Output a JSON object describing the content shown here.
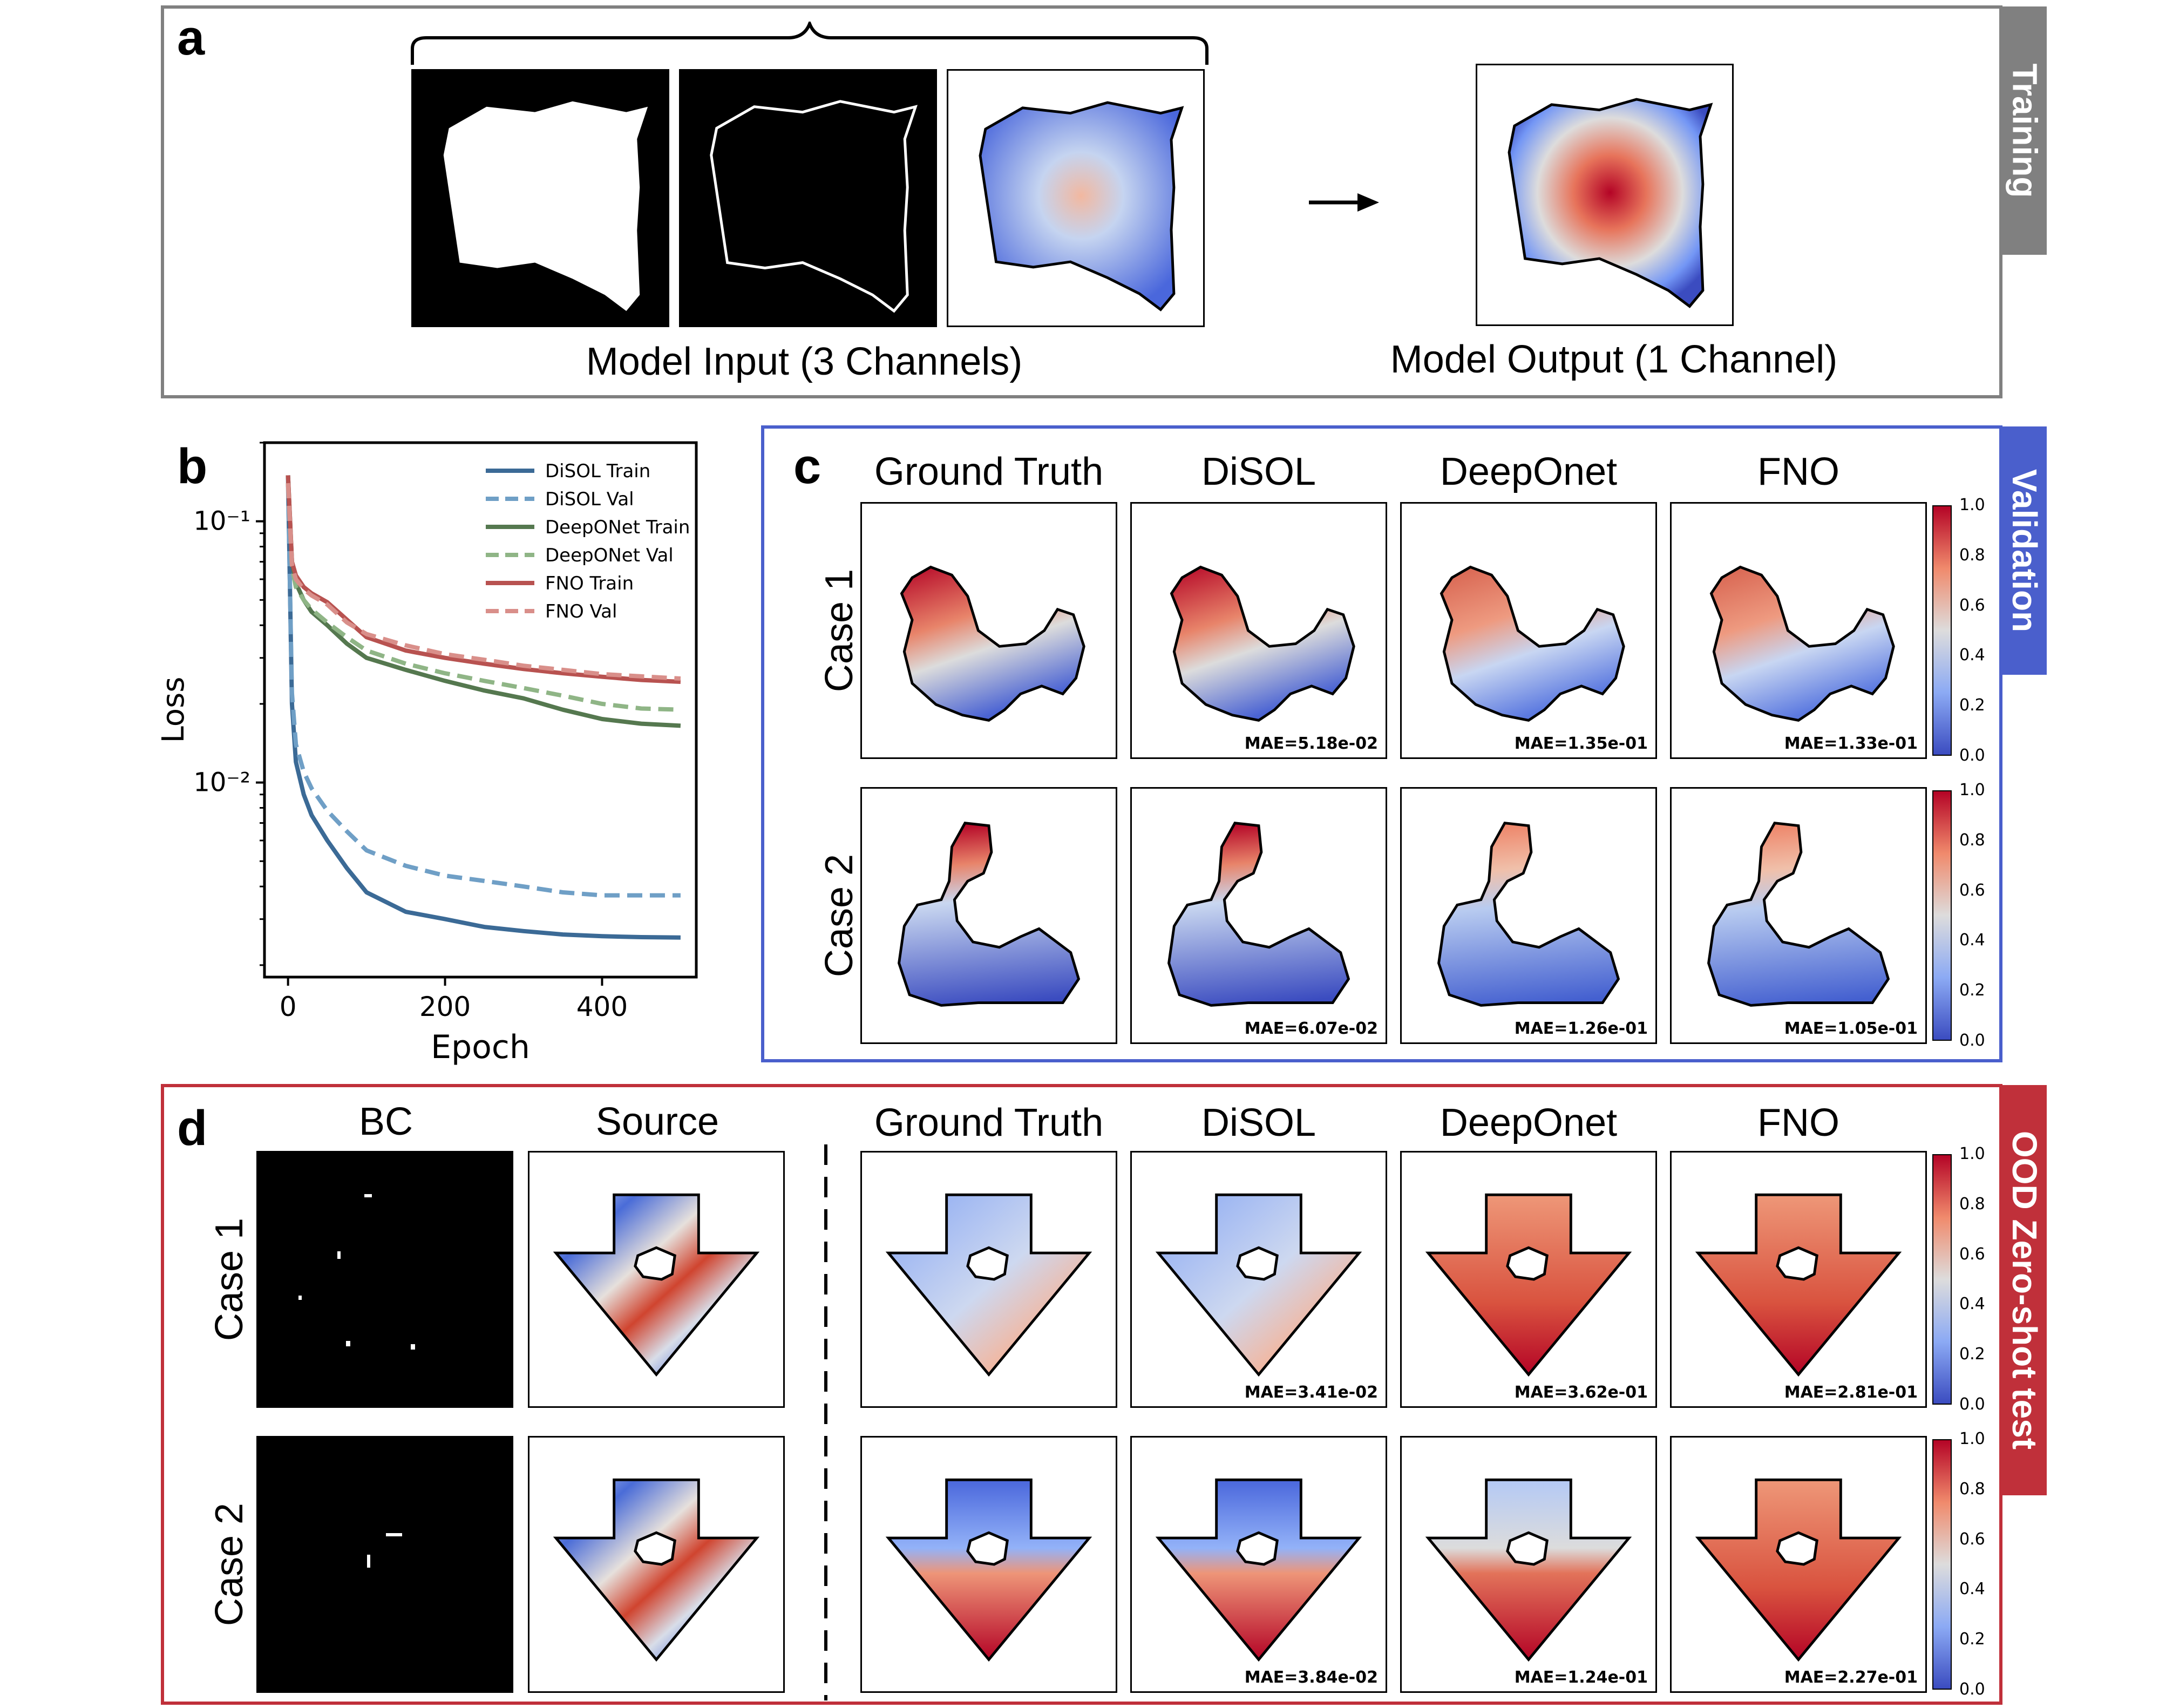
{
  "panels": {
    "a": {
      "letter": "a",
      "tab": "Training",
      "input_caption": "Model Input (3 Channels)",
      "output_caption": "Model Output (1 Channel)"
    },
    "b": {
      "letter": "b"
    },
    "c": {
      "letter": "c",
      "tab": "Validation",
      "columns": [
        "Ground Truth",
        "DiSOL",
        "DeepOnet",
        "FNO"
      ],
      "rows": [
        {
          "label": "Case 1",
          "mae": [
            "",
            "MAE=5.18e-02",
            "MAE=1.35e-01",
            "MAE=1.33e-01"
          ]
        },
        {
          "label": "Case 2",
          "mae": [
            "",
            "MAE=6.07e-02",
            "MAE=1.26e-01",
            "MAE=1.05e-01"
          ]
        }
      ]
    },
    "d": {
      "letter": "d",
      "tab": "OOD Zero-shot test",
      "bc_title": "BC",
      "source_title": "Source",
      "columns": [
        "Ground Truth",
        "DiSOL",
        "DeepOnet",
        "FNO"
      ],
      "rows": [
        {
          "label": "Case 1",
          "mae": [
            "",
            "MAE=3.41e-02",
            "MAE=3.62e-01",
            "MAE=2.81e-01"
          ]
        },
        {
          "label": "Case 2",
          "mae": [
            "",
            "MAE=3.84e-02",
            "MAE=1.24e-01",
            "MAE=2.27e-01"
          ]
        }
      ]
    }
  },
  "colorbar": {
    "ticks": [
      "1.0",
      "0.8",
      "0.6",
      "0.4",
      "0.2",
      "0.0"
    ]
  },
  "colors": {
    "training_tab": "#808080",
    "validation_tab": "#4a5fcc",
    "validation_border": "#4a5fcc",
    "ood_tab": "#c0303a",
    "ood_border": "#c0303a",
    "panel_a_border": "#808080"
  },
  "chart_data": {
    "type": "line",
    "xlabel": "Epoch",
    "ylabel": "Loss",
    "yscale": "log",
    "xlim": [
      -30,
      520
    ],
    "ylim": [
      0.0018,
      0.2
    ],
    "xticks": [
      0,
      200,
      400
    ],
    "xtick_labels": [
      "0",
      "200",
      "400"
    ],
    "yticks": [
      0.1,
      0.01
    ],
    "ytick_labels": [
      "10⁻¹",
      "10⁻²"
    ],
    "legend": "top-right",
    "series": [
      {
        "name": "DiSOL Train",
        "color": "#3b6a96",
        "style": "solid",
        "x": [
          0,
          5,
          10,
          20,
          30,
          50,
          75,
          100,
          150,
          200,
          250,
          300,
          350,
          400,
          450,
          500
        ],
        "y": [
          0.15,
          0.02,
          0.012,
          0.009,
          0.0075,
          0.006,
          0.0047,
          0.0038,
          0.0032,
          0.003,
          0.0028,
          0.0027,
          0.00262,
          0.00258,
          0.00256,
          0.00255
        ]
      },
      {
        "name": "DiSOL Val",
        "color": "#6f9fc6",
        "style": "dashed",
        "x": [
          0,
          5,
          10,
          20,
          30,
          50,
          75,
          100,
          150,
          200,
          250,
          300,
          350,
          400,
          450,
          500
        ],
        "y": [
          0.14,
          0.022,
          0.014,
          0.011,
          0.0095,
          0.0078,
          0.0065,
          0.0055,
          0.0048,
          0.0044,
          0.0042,
          0.004,
          0.0038,
          0.0037,
          0.0037,
          0.0037
        ]
      },
      {
        "name": "DeepONet Train",
        "color": "#55784f",
        "style": "solid",
        "x": [
          0,
          5,
          10,
          20,
          30,
          50,
          75,
          100,
          150,
          200,
          250,
          300,
          350,
          400,
          450,
          500
        ],
        "y": [
          0.15,
          0.07,
          0.058,
          0.05,
          0.045,
          0.04,
          0.034,
          0.03,
          0.027,
          0.0245,
          0.0225,
          0.021,
          0.019,
          0.0175,
          0.0168,
          0.0165
        ]
      },
      {
        "name": "DeepONet Val",
        "color": "#8fb586",
        "style": "dashed",
        "x": [
          0,
          5,
          10,
          20,
          30,
          50,
          75,
          100,
          150,
          200,
          250,
          300,
          350,
          400,
          450,
          500
        ],
        "y": [
          0.14,
          0.066,
          0.056,
          0.05,
          0.046,
          0.041,
          0.036,
          0.032,
          0.0285,
          0.0262,
          0.0245,
          0.023,
          0.0215,
          0.02,
          0.0192,
          0.019
        ]
      },
      {
        "name": "FNO Train",
        "color": "#b85250",
        "style": "solid",
        "x": [
          0,
          5,
          10,
          20,
          30,
          50,
          75,
          100,
          150,
          200,
          250,
          300,
          350,
          400,
          450,
          500
        ],
        "y": [
          0.15,
          0.07,
          0.062,
          0.056,
          0.053,
          0.049,
          0.042,
          0.036,
          0.032,
          0.03,
          0.0285,
          0.0272,
          0.0262,
          0.0254,
          0.0247,
          0.0243
        ]
      },
      {
        "name": "FNO Val",
        "color": "#d98f8a",
        "style": "dashed",
        "x": [
          0,
          5,
          10,
          20,
          30,
          50,
          75,
          100,
          150,
          200,
          250,
          300,
          350,
          400,
          450,
          500
        ],
        "y": [
          0.14,
          0.068,
          0.06,
          0.055,
          0.052,
          0.048,
          0.041,
          0.037,
          0.0335,
          0.031,
          0.0295,
          0.028,
          0.027,
          0.026,
          0.0255,
          0.025
        ]
      }
    ]
  }
}
